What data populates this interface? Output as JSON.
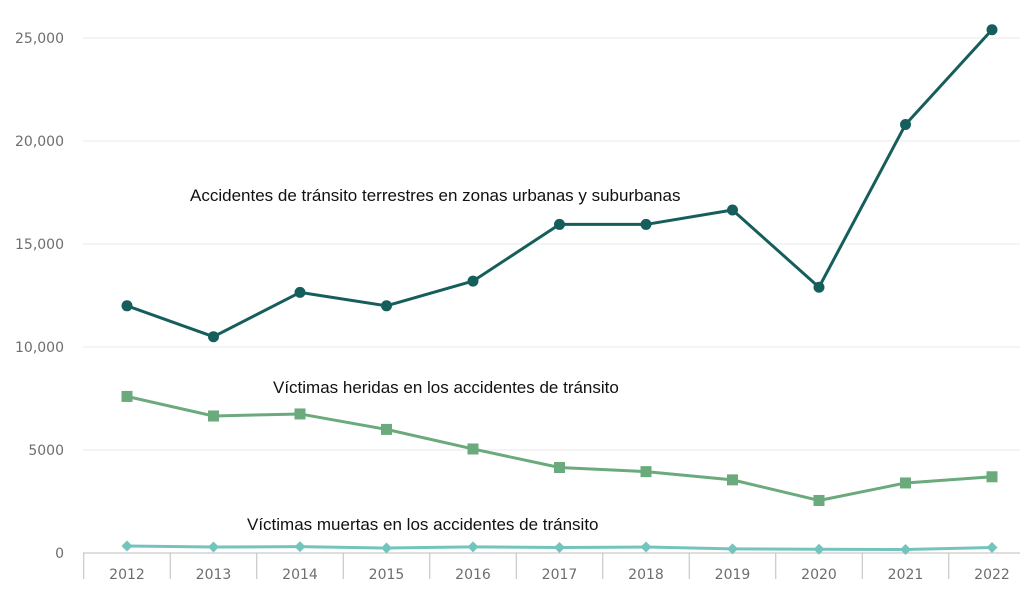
{
  "chart_data": {
    "type": "line",
    "categories": [
      "2012",
      "2013",
      "2014",
      "2015",
      "2016",
      "2017",
      "2018",
      "2019",
      "2020",
      "2021",
      "2022"
    ],
    "ylim": [
      0,
      25000
    ],
    "yticks": [
      0,
      5000,
      10000,
      15000,
      20000,
      25000
    ],
    "ytick_labels": [
      "0",
      "5000",
      "10,000",
      "15,000",
      "20,000",
      "25,000"
    ],
    "grid": true,
    "series": [
      {
        "name": "Accidentes de tránsito terrestres en zonas urbanas y suburbanas",
        "marker": "circle",
        "color": "#155e5c",
        "values": [
          12000,
          10500,
          12650,
          12000,
          13200,
          15950,
          15950,
          16650,
          12900,
          20800,
          25400
        ]
      },
      {
        "name": "Víctimas heridas en los accidentes de tránsito",
        "marker": "square",
        "color": "#6aaa7c",
        "values": [
          7600,
          6650,
          6750,
          6000,
          5050,
          4150,
          3950,
          3550,
          2550,
          3400,
          3700
        ]
      },
      {
        "name": "Víctimas muertas en los accidentes de tránsito",
        "marker": "diamond",
        "color": "#74c4be",
        "values": [
          340,
          290,
          310,
          240,
          300,
          270,
          290,
          200,
          180,
          170,
          270
        ]
      }
    ]
  }
}
